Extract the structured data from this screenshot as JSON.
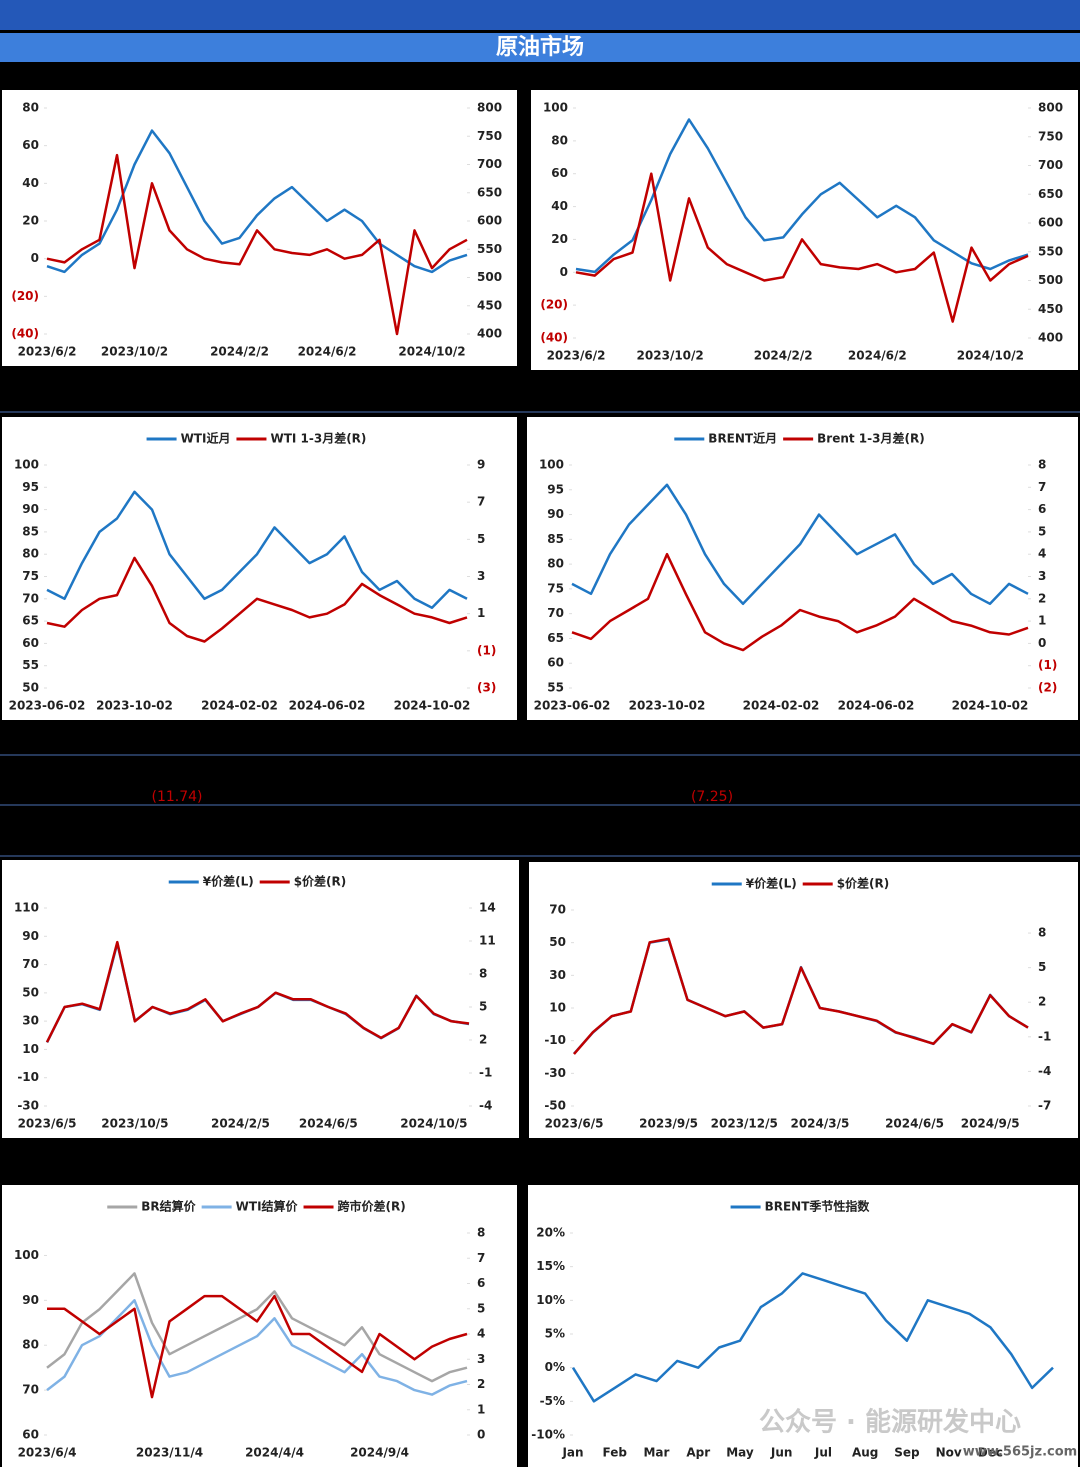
{
  "title": "原油市场",
  "annotations": [
    "(11.74)",
    "(7.25)"
  ],
  "watermark": [
    "公众号 · 能源研发中心",
    "www.565jz.com"
  ],
  "chart_data": [
    {
      "type": "line",
      "legend": false,
      "negative_label_color": "#c00000",
      "categories": [
        "2023/6/2",
        null,
        null,
        null,
        null,
        "2023/10/2",
        null,
        null,
        null,
        null,
        null,
        "2024/2/2",
        null,
        null,
        null,
        null,
        "2024/6/2",
        null,
        null,
        null,
        null,
        null,
        "2024/10/2",
        null,
        null
      ],
      "ylim": [
        -40,
        80
      ],
      "yticks": [
        80,
        60,
        40,
        20,
        0,
        {
          "value": -20,
          "label": "(20)"
        },
        {
          "value": -40,
          "label": "(40)"
        }
      ],
      "y2lim": [
        400,
        800
      ],
      "y2ticks": [
        800,
        750,
        700,
        650,
        600,
        550,
        500,
        450,
        400
      ],
      "series": [
        {
          "color": "#1f77c4",
          "axis": "y2",
          "values": [
            520,
            510,
            540,
            560,
            620,
            700,
            760,
            720,
            660,
            600,
            560,
            570,
            610,
            640,
            660,
            630,
            600,
            620,
            600,
            560,
            540,
            520,
            510,
            530,
            540
          ]
        },
        {
          "color": "#c00000",
          "axis": "y",
          "values": [
            0,
            -2,
            5,
            10,
            55,
            -5,
            40,
            15,
            5,
            0,
            -2,
            -3,
            15,
            5,
            3,
            2,
            5,
            0,
            2,
            10,
            -40,
            15,
            -5,
            5,
            10
          ]
        }
      ]
    },
    {
      "type": "line",
      "legend": false,
      "negative_label_color": "#c00000",
      "categories": [
        "2023/6/2",
        null,
        null,
        null,
        null,
        "2023/10/2",
        null,
        null,
        null,
        null,
        null,
        "2024/2/2",
        null,
        null,
        null,
        null,
        "2024/6/2",
        null,
        null,
        null,
        null,
        null,
        "2024/10/2",
        null,
        null
      ],
      "ylim": [
        -40,
        100
      ],
      "yticks": [
        100,
        80,
        60,
        40,
        20,
        0,
        {
          "value": -20,
          "label": "(20)"
        },
        {
          "value": -40,
          "label": "(40)"
        }
      ],
      "y2lim": [
        400,
        800
      ],
      "y2ticks": [
        800,
        750,
        700,
        650,
        600,
        550,
        500,
        450,
        400
      ],
      "series": [
        {
          "color": "#1f77c4",
          "axis": "y2",
          "values": [
            520,
            515,
            545,
            570,
            640,
            720,
            780,
            730,
            670,
            610,
            570,
            575,
            615,
            650,
            670,
            640,
            610,
            630,
            610,
            570,
            550,
            530,
            520,
            535,
            545
          ]
        },
        {
          "color": "#c00000",
          "axis": "y",
          "values": [
            0,
            -2,
            8,
            12,
            60,
            -5,
            45,
            15,
            5,
            0,
            -5,
            -3,
            20,
            5,
            3,
            2,
            5,
            0,
            2,
            12,
            -30,
            15,
            -5,
            5,
            10
          ]
        }
      ]
    },
    {
      "type": "line",
      "legend": true,
      "negative_label_color": "#c00000",
      "categories": [
        "2023-06-02",
        null,
        null,
        null,
        null,
        "2023-10-02",
        null,
        null,
        null,
        null,
        null,
        "2024-02-02",
        null,
        null,
        null,
        null,
        "2024-06-02",
        null,
        null,
        null,
        null,
        null,
        "2024-10-02",
        null,
        null
      ],
      "ylim": [
        50,
        100
      ],
      "yticks": [
        100,
        95,
        90,
        85,
        80,
        75,
        70,
        65,
        60,
        55,
        50
      ],
      "y2lim": [
        -3,
        9
      ],
      "y2ticks": [
        9,
        7,
        5,
        3,
        1,
        {
          "value": -1,
          "label": "(1)"
        },
        {
          "value": -3,
          "label": "(3)"
        }
      ],
      "series": [
        {
          "name": "WTI近月",
          "color": "#1f77c4",
          "axis": "y",
          "values": [
            72,
            70,
            78,
            85,
            88,
            94,
            90,
            80,
            75,
            70,
            72,
            76,
            80,
            86,
            82,
            78,
            80,
            84,
            76,
            72,
            74,
            70,
            68,
            72,
            70
          ]
        },
        {
          "name": "WTI 1-3月差(R)",
          "color": "#c00000",
          "axis": "y2",
          "values": [
            0.5,
            0.3,
            1.2,
            1.8,
            2.0,
            4.0,
            2.5,
            0.5,
            -0.2,
            -0.5,
            0.2,
            1.0,
            1.8,
            1.5,
            1.2,
            0.8,
            1.0,
            1.5,
            2.6,
            2.0,
            1.5,
            1.0,
            0.8,
            0.5,
            0.8
          ]
        }
      ]
    },
    {
      "type": "line",
      "legend": true,
      "negative_label_color": "#c00000",
      "categories": [
        "2023-06-02",
        null,
        null,
        null,
        null,
        "2023-10-02",
        null,
        null,
        null,
        null,
        null,
        "2024-02-02",
        null,
        null,
        null,
        null,
        "2024-06-02",
        null,
        null,
        null,
        null,
        null,
        "2024-10-02",
        null,
        null
      ],
      "ylim": [
        55,
        100
      ],
      "yticks": [
        100,
        95,
        90,
        85,
        80,
        75,
        70,
        65,
        60,
        55
      ],
      "y2lim": [
        -2,
        8
      ],
      "y2ticks": [
        8,
        7,
        6,
        5,
        4,
        3,
        2,
        1,
        0,
        {
          "value": -1,
          "label": "(1)"
        },
        {
          "value": -2,
          "label": "(2)"
        }
      ],
      "series": [
        {
          "name": "BRENT近月",
          "color": "#1f77c4",
          "axis": "y",
          "values": [
            76,
            74,
            82,
            88,
            92,
            96,
            90,
            82,
            76,
            72,
            76,
            80,
            84,
            90,
            86,
            82,
            84,
            86,
            80,
            76,
            78,
            74,
            72,
            76,
            74
          ]
        },
        {
          "name": "Brent 1-3月差(R)",
          "color": "#c00000",
          "axis": "y2",
          "values": [
            0.5,
            0.2,
            1.0,
            1.5,
            2.0,
            4.0,
            2.2,
            0.5,
            0.0,
            -0.3,
            0.3,
            0.8,
            1.5,
            1.2,
            1.0,
            0.5,
            0.8,
            1.2,
            2.0,
            1.5,
            1.0,
            0.8,
            0.5,
            0.4,
            0.7
          ]
        }
      ]
    },
    {
      "type": "line",
      "legend": true,
      "categories": [
        "2023/6/5",
        null,
        null,
        null,
        null,
        "2023/10/5",
        null,
        null,
        null,
        null,
        null,
        "2024/2/5",
        null,
        null,
        null,
        null,
        "2024/6/5",
        null,
        null,
        null,
        null,
        null,
        "2024/10/5",
        null,
        null
      ],
      "ylim": [
        -30,
        110
      ],
      "yticks": [
        110,
        90,
        70,
        50,
        30,
        10,
        -10,
        -30
      ],
      "y2lim": [
        -4,
        14
      ],
      "y2ticks": [
        14,
        11,
        8,
        5,
        2,
        -1,
        -4
      ],
      "series": [
        {
          "name": "¥价差(L)",
          "color": "#1f77c4",
          "axis": "y",
          "values": [
            15,
            40,
            42,
            38,
            85,
            30,
            40,
            35,
            38,
            45,
            30,
            35,
            40,
            50,
            45,
            45,
            40,
            35,
            25,
            18,
            25,
            48,
            35,
            30,
            28
          ]
        },
        {
          "name": "$价差(R)",
          "color": "#c00000",
          "axis": "y2",
          "values": [
            1.8,
            5.0,
            5.3,
            4.8,
            10.9,
            3.7,
            5.0,
            4.4,
            4.8,
            5.7,
            3.7,
            4.4,
            5.0,
            6.3,
            5.7,
            5.7,
            5.0,
            4.4,
            3.1,
            2.2,
            3.1,
            6.0,
            4.4,
            3.7,
            3.5
          ]
        }
      ]
    },
    {
      "type": "line",
      "legend": true,
      "categories": [
        "2023/6/5",
        null,
        null,
        null,
        null,
        "2023/9/5",
        null,
        null,
        null,
        "2023/12/5",
        null,
        null,
        null,
        "2024/3/5",
        null,
        null,
        null,
        null,
        "2024/6/5",
        null,
        null,
        null,
        "2024/9/5",
        null,
        null
      ],
      "ylim": [
        -50,
        70
      ],
      "yticks": [
        70,
        50,
        30,
        10,
        -10,
        -30,
        -50
      ],
      "y2lim": [
        -7,
        10
      ],
      "y2ticks": [
        8,
        5,
        2,
        -1,
        -4,
        -7
      ],
      "series": [
        {
          "name": "¥价差(L)",
          "color": "#1f77c4",
          "axis": "y",
          "values": [
            -18,
            -5,
            5,
            8,
            50,
            52,
            15,
            10,
            5,
            8,
            -2,
            0,
            35,
            10,
            8,
            5,
            2,
            -5,
            -8,
            -12,
            0,
            -5,
            18,
            5,
            -2
          ]
        },
        {
          "name": "$价差(R)",
          "color": "#c00000",
          "axis": "y2",
          "values": [
            -2.5,
            -0.6,
            0.8,
            1.2,
            7.2,
            7.5,
            2.2,
            1.5,
            0.8,
            1.2,
            -0.2,
            0.1,
            5.0,
            1.5,
            1.2,
            0.8,
            0.4,
            -0.6,
            -1.1,
            -1.6,
            0.1,
            -0.6,
            2.6,
            0.8,
            -0.2
          ]
        }
      ]
    },
    {
      "type": "line",
      "legend": true,
      "categories": [
        "2023/6/4",
        null,
        null,
        null,
        null,
        null,
        null,
        "2023/11/4",
        null,
        null,
        null,
        null,
        null,
        "2024/4/4",
        null,
        null,
        null,
        null,
        null,
        "2024/9/4",
        null,
        null,
        null,
        null,
        null
      ],
      "ylim": [
        60,
        105
      ],
      "yticks": [
        100,
        90,
        80,
        70,
        60
      ],
      "y2lim": [
        0,
        8
      ],
      "y2ticks": [
        8,
        7,
        6,
        5,
        4,
        3,
        2,
        1,
        0
      ],
      "series": [
        {
          "name": "BR结算价",
          "color": "#a6a6a6",
          "axis": "y",
          "values": [
            75,
            78,
            85,
            88,
            92,
            96,
            85,
            78,
            80,
            82,
            84,
            86,
            88,
            92,
            86,
            84,
            82,
            80,
            84,
            78,
            76,
            74,
            72,
            74,
            75
          ]
        },
        {
          "name": "WTI结算价",
          "color": "#7fb2e5",
          "axis": "y",
          "values": [
            70,
            73,
            80,
            82,
            86,
            90,
            80,
            73,
            74,
            76,
            78,
            80,
            82,
            86,
            80,
            78,
            76,
            74,
            78,
            73,
            72,
            70,
            69,
            71,
            72
          ]
        },
        {
          "name": "跨市价差(R)",
          "color": "#c00000",
          "axis": "y2",
          "values": [
            5,
            5,
            4.5,
            4.0,
            4.5,
            5.0,
            1.5,
            4.5,
            5,
            5.5,
            5.5,
            5,
            4.5,
            5.5,
            4,
            4,
            3.5,
            3,
            2.5,
            4,
            3.5,
            3,
            3.5,
            3.8,
            4
          ]
        }
      ]
    },
    {
      "type": "line",
      "legend": true,
      "categories": [
        "Jan",
        null,
        "Feb",
        null,
        "Mar",
        null,
        "Apr",
        null,
        "May",
        null,
        "Jun",
        null,
        "Jul",
        null,
        "Aug",
        null,
        "Sep",
        null,
        "Nov",
        null,
        "Dec",
        null,
        null,
        null
      ],
      "ylim": [
        -10,
        20
      ],
      "yticks": [
        {
          "value": 20,
          "label": "20%"
        },
        {
          "value": 15,
          "label": "15%"
        },
        {
          "value": 10,
          "label": "10%"
        },
        {
          "value": 5,
          "label": "5%"
        },
        {
          "value": 0,
          "label": "0%"
        },
        {
          "value": -5,
          "label": "-5%"
        },
        {
          "value": -10,
          "label": "-10%"
        }
      ],
      "series": [
        {
          "name": "BRENT季节性指数",
          "color": "#1f77c4",
          "axis": "y",
          "values": [
            0,
            -5,
            -3,
            -1,
            -2,
            1,
            0,
            3,
            4,
            9,
            11,
            14,
            13,
            12,
            11,
            7,
            4,
            10,
            9,
            8,
            6,
            2,
            -3,
            0
          ]
        }
      ]
    }
  ]
}
